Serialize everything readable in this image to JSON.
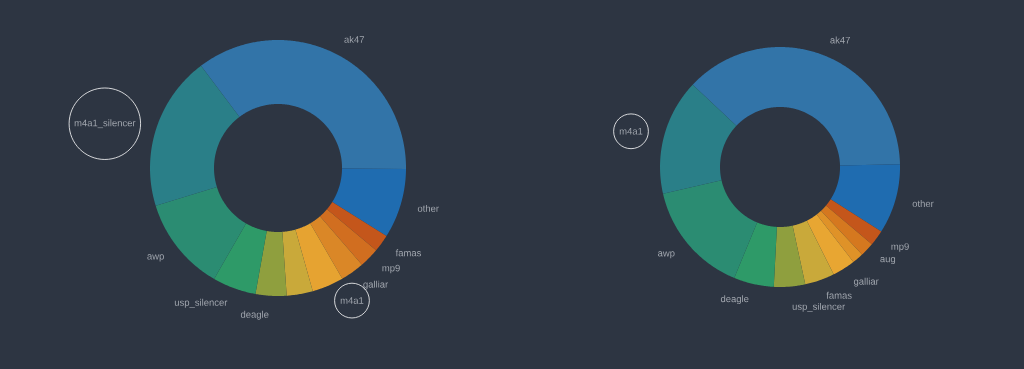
{
  "chart_data": [
    {
      "type": "donut",
      "categories": [
        "ak47",
        "other",
        "famas",
        "mp9",
        "galliar",
        "m4a1",
        null,
        "deagle",
        "usp_silencer",
        "awp",
        "m4a1_silencer"
      ],
      "values": [
        35.4,
        8.8,
        2.2,
        2.5,
        3.0,
        4.0,
        3.3,
        3.9,
        5.5,
        11.9,
        19.5
      ],
      "colors": [
        "#3274a8",
        "#1f6cb0",
        "#c4561b",
        "#d16e20",
        "#da8727",
        "#e6a331",
        "#c9a93a",
        "#8f9f3e",
        "#2e9a68",
        "#2b8c72",
        "#2a7f88"
      ]
    },
    {
      "type": "donut",
      "categories": [
        "ak47",
        "other",
        "mp9",
        "aug",
        null,
        "galliar",
        "famas",
        "usp_silencer",
        "deagle",
        "awp",
        "m4a1"
      ],
      "values": [
        37.6,
        9.4,
        2.1,
        1.9,
        1.5,
        3.1,
        4.0,
        4.2,
        5.4,
        15.2,
        15.6
      ],
      "colors": [
        "#3274a8",
        "#1f6cb0",
        "#c4561b",
        "#d5781f",
        "#df9228",
        "#e8a632",
        "#c9a93a",
        "#8f9f3e",
        "#2e9a68",
        "#2b8c72",
        "#2a7f88"
      ]
    }
  ]
}
